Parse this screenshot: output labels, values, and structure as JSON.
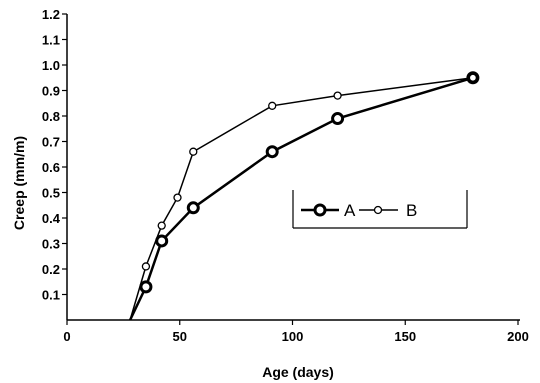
{
  "chart_data": {
    "type": "line",
    "title": "",
    "xlabel": "Age (days)",
    "ylabel": "Creep  (mm/m)",
    "xlim": [
      0,
      200
    ],
    "ylim": [
      0,
      1.2
    ],
    "xticks": [
      0,
      50,
      100,
      150,
      200
    ],
    "yticks": [
      0.1,
      0.2,
      0.3,
      0.4,
      0.5,
      0.6,
      0.7,
      0.8,
      0.9,
      1.0,
      1.1,
      1.2
    ],
    "grid": false,
    "legend": "center-right",
    "series": [
      {
        "name": "A",
        "marker": "thick-open-circle",
        "color": "#000000",
        "points": [
          [
            28,
            0.0
          ],
          [
            35,
            0.13
          ],
          [
            42,
            0.31
          ],
          [
            56,
            0.44
          ],
          [
            91,
            0.66
          ],
          [
            120,
            0.79
          ],
          [
            180,
            0.95
          ]
        ]
      },
      {
        "name": "B",
        "marker": "thin-open-circle",
        "color": "#000000",
        "points": [
          [
            28,
            0.0
          ],
          [
            35,
            0.21
          ],
          [
            42,
            0.37
          ],
          [
            49,
            0.48
          ],
          [
            56,
            0.66
          ],
          [
            91,
            0.84
          ],
          [
            120,
            0.88
          ],
          [
            180,
            0.95
          ]
        ]
      }
    ]
  }
}
